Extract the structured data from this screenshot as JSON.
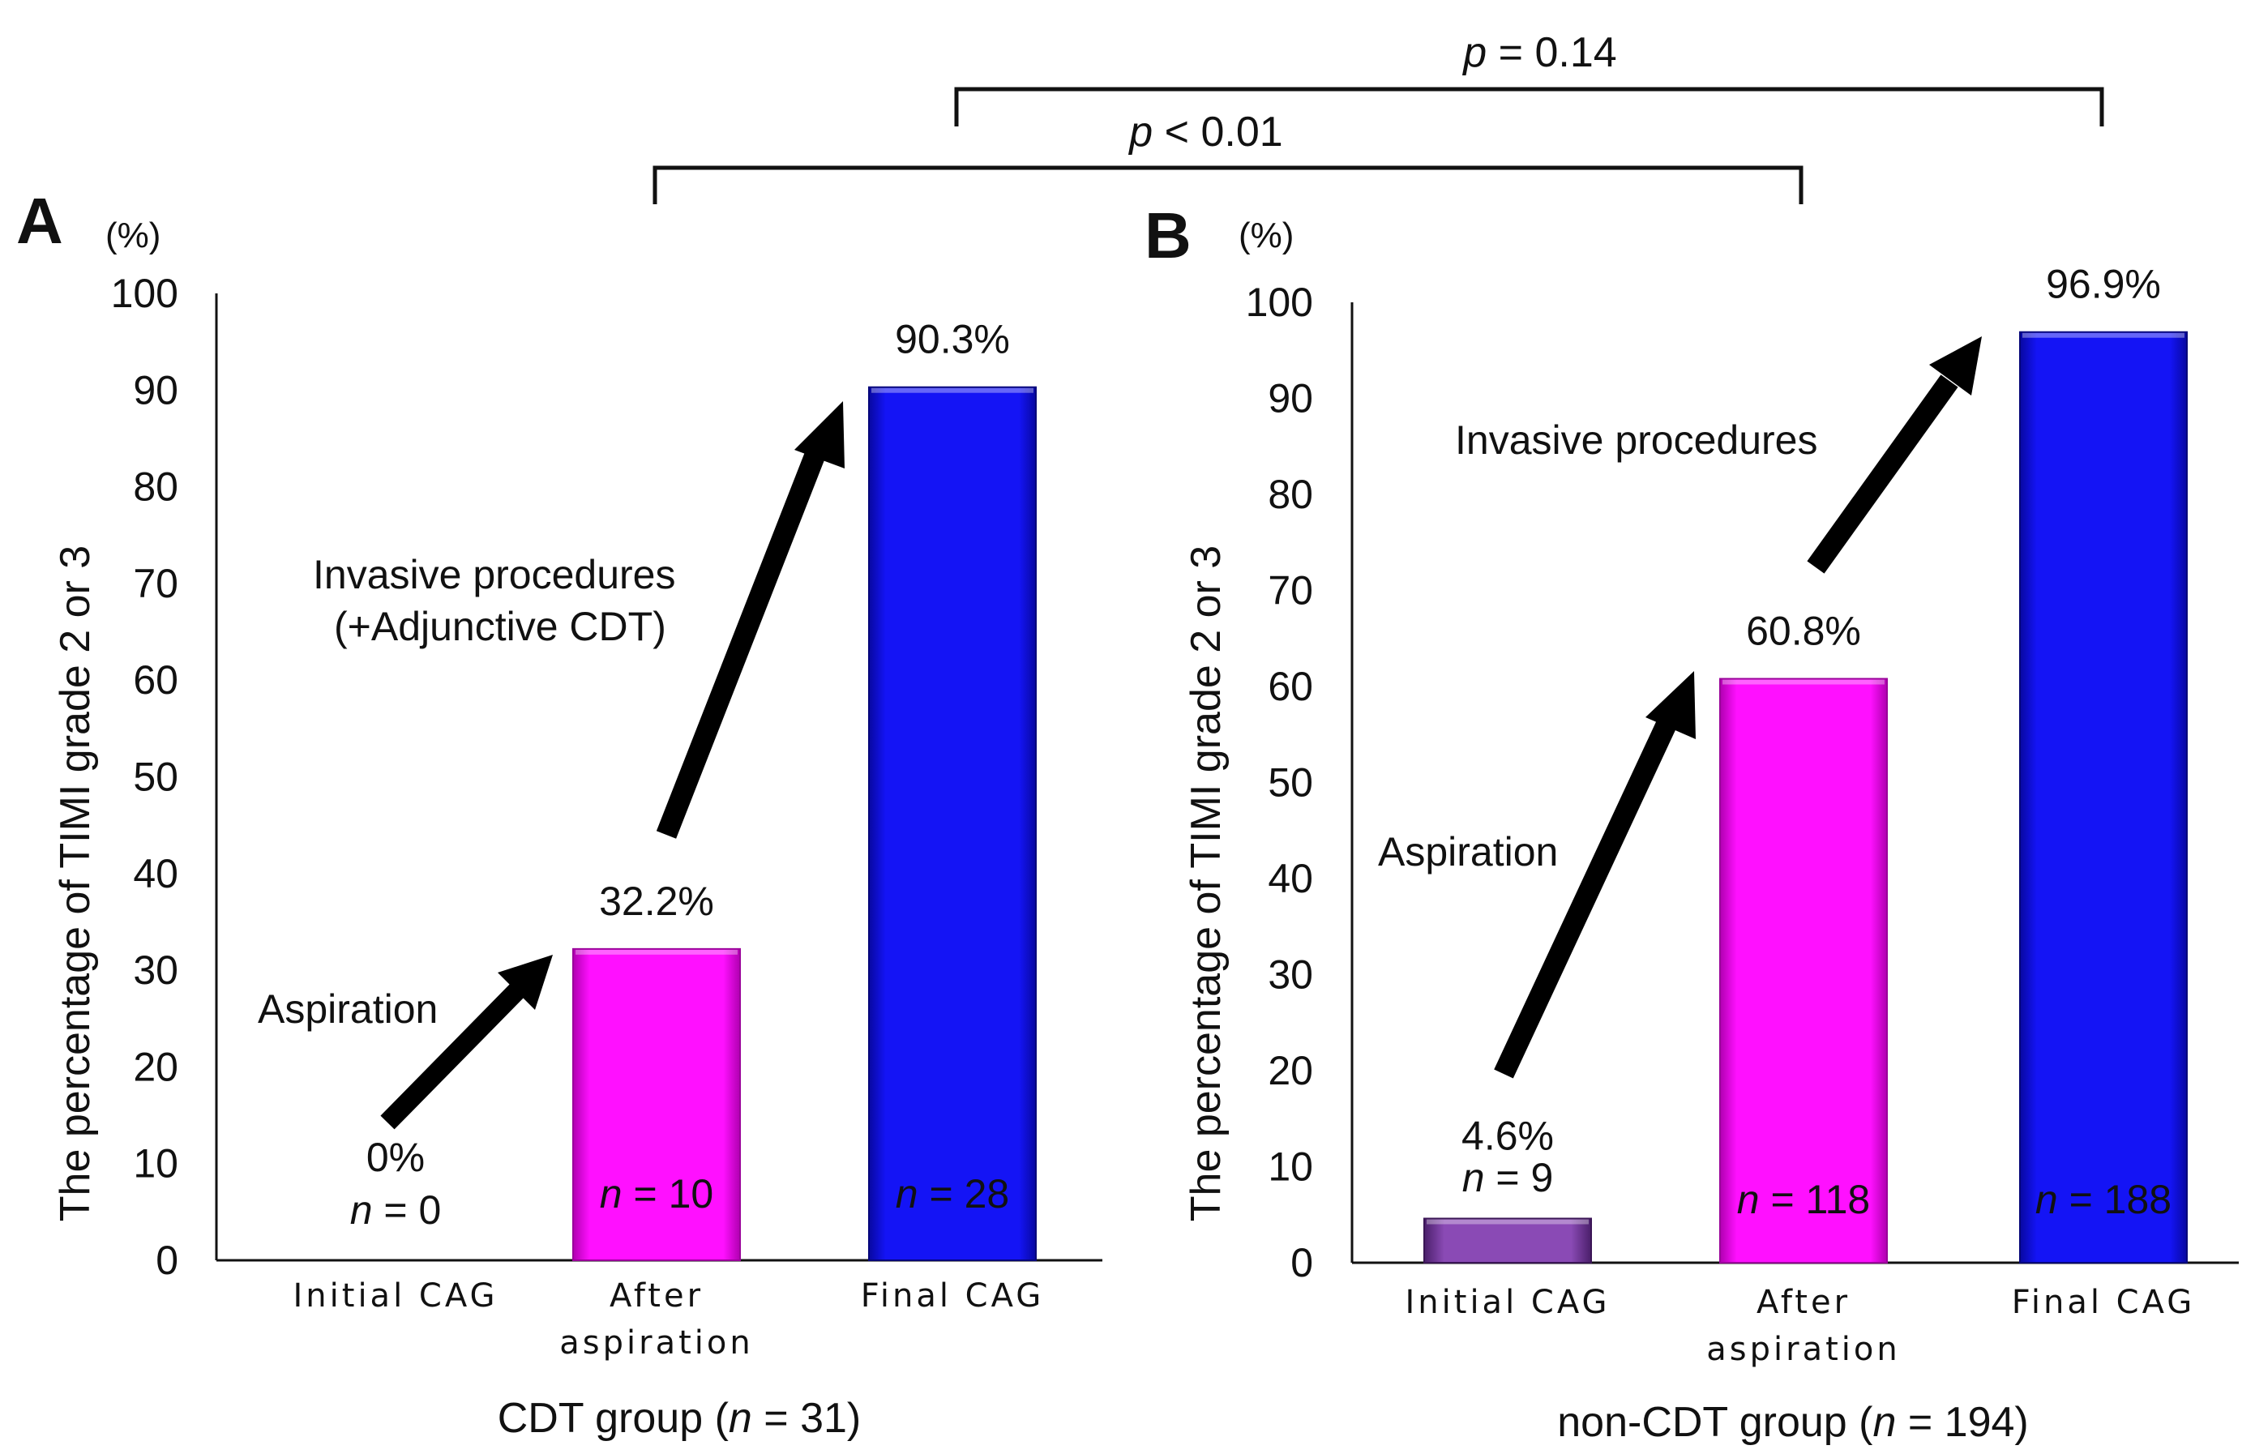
{
  "chart_data": [
    {
      "type": "bar",
      "panel_label": "A",
      "unit_label": "(%)",
      "ylabel": "The percentage of TIMI grade 2 or 3",
      "ylim": [
        0,
        100
      ],
      "yticks": [
        "0",
        "10",
        "20",
        "30",
        "40",
        "50",
        "60",
        "70",
        "80",
        "90",
        "100"
      ],
      "categories": [
        "Initial CAG",
        "After\naspiration",
        "Final CAG"
      ],
      "values": [
        0,
        32.2,
        90.3
      ],
      "value_labels": [
        "0%",
        "32.2%",
        "90.3%"
      ],
      "n_values": [
        "0",
        "10",
        "28"
      ],
      "n_prefix": "n",
      "colors": [
        "#7b3fa0",
        "#ff00ff",
        "#1010f0"
      ],
      "xlabel": {
        "prefix": "CDT group",
        "n_var": "n",
        "n_text": " = 31)"
      },
      "annotations": [
        "Aspiration",
        "Invasive procedures",
        "(+Adjunctive CDT)"
      ]
    },
    {
      "type": "bar",
      "panel_label": "B",
      "unit_label": "(%)",
      "ylabel": "The percentage of TIMI grade 2 or 3",
      "ylim": [
        0,
        100
      ],
      "yticks": [
        "0",
        "10",
        "20",
        "30",
        "40",
        "50",
        "60",
        "70",
        "80",
        "90",
        "100"
      ],
      "categories": [
        "Initial CAG",
        "After\naspiration",
        "Final CAG"
      ],
      "values": [
        4.6,
        60.8,
        96.9
      ],
      "value_labels": [
        "4.6%",
        "60.8%",
        "96.9%"
      ],
      "n_values": [
        "9",
        "118",
        "188"
      ],
      "n_prefix": "n",
      "colors": [
        "#7b3fa0",
        "#ff00ff",
        "#1010f0"
      ],
      "xlabel": {
        "prefix": "non-CDT group",
        "n_var": "n",
        "n_text": " = 194)"
      },
      "annotations": [
        "Aspiration",
        "Invasive procedures"
      ]
    }
  ],
  "comparisons": [
    {
      "p_var": "p",
      "text": " = 0.14",
      "between": "A Final CAG vs B Final CAG"
    },
    {
      "p_var": "p",
      "text": " < 0.01",
      "between": "A After aspiration vs B After aspiration"
    }
  ]
}
